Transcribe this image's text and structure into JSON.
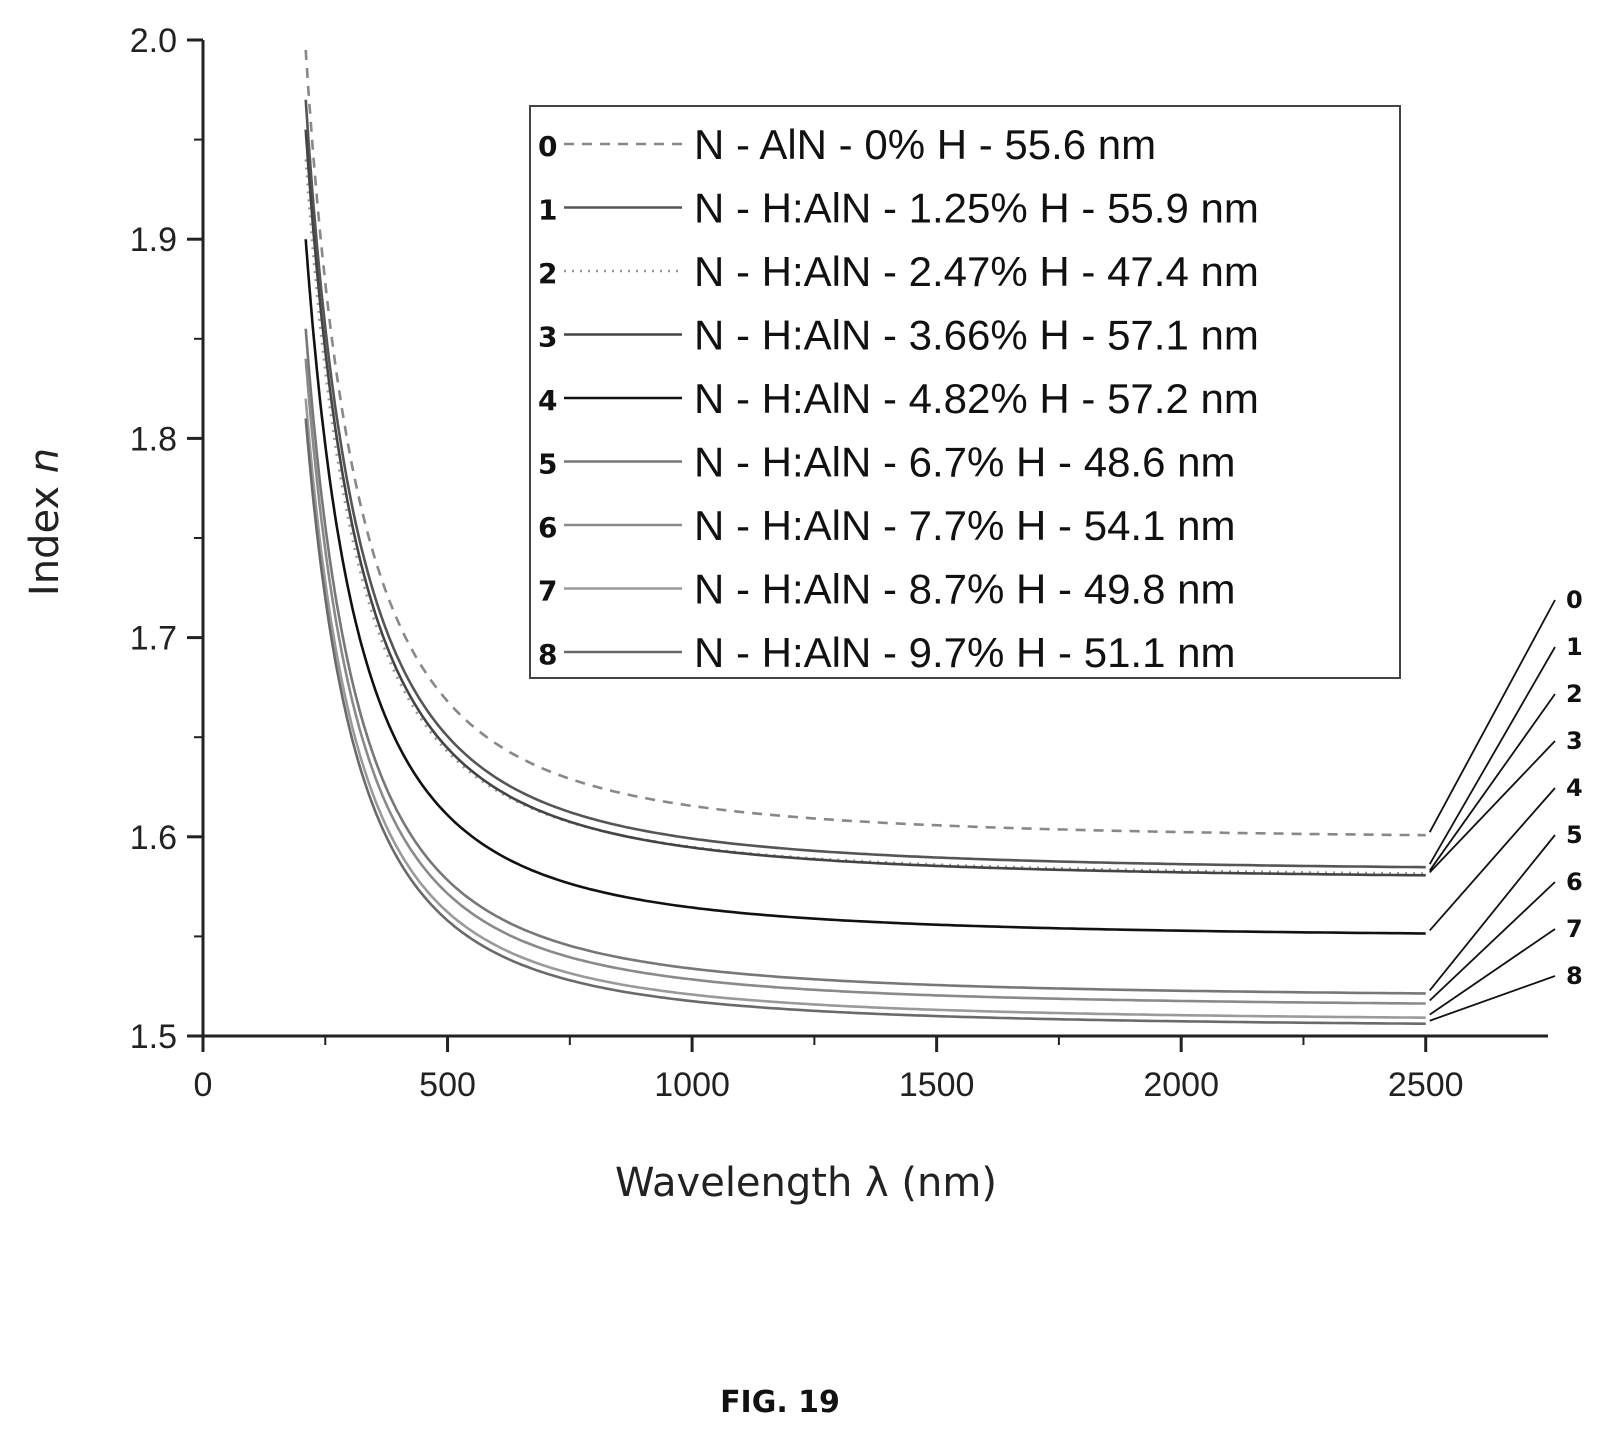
{
  "chart_data": {
    "type": "line",
    "xlabel": "Wavelength λ (nm)",
    "ylabel_main": "Index ",
    "ylabel_var": "n",
    "xlim": [
      0,
      2750
    ],
    "ylim": [
      1.5,
      2.0
    ],
    "x_ticks": [
      0,
      500,
      1000,
      1500,
      2000,
      2500
    ],
    "x_tick_labels": [
      "0",
      "500",
      "1000",
      "1500",
      "2000",
      "2500"
    ],
    "y_ticks": [
      1.5,
      1.6,
      1.7,
      1.8,
      1.9,
      2.0
    ],
    "y_tick_labels": [
      "1.5",
      "1.6",
      "1.7",
      "1.8",
      "1.9",
      "2.0"
    ],
    "grid": false,
    "legend_position": "top-right",
    "x_range": [
      210,
      2500
    ],
    "series": [
      {
        "id": "0",
        "name": "N - AlN - 0% H - 55.6 nm",
        "n_inf": 1.598,
        "n_start": 1.995,
        "color": "#888888",
        "dash": "10,8"
      },
      {
        "id": "1",
        "name": "N - H:AlN - 1.25% H - 55.9 nm",
        "n_inf": 1.582,
        "n_start": 1.97,
        "color": "#555555",
        "dash": ""
      },
      {
        "id": "2",
        "name": "N - H:AlN - 2.47% H - 47.4 nm",
        "n_inf": 1.579,
        "n_start": 1.94,
        "color": "#999999",
        "dash": "2,6"
      },
      {
        "id": "3",
        "name": "N - H:AlN - 3.66% H - 57.1 nm",
        "n_inf": 1.578,
        "n_start": 1.955,
        "color": "#444444",
        "dash": ""
      },
      {
        "id": "4",
        "name": "N - H:AlN - 4.82% H - 57.2 nm",
        "n_inf": 1.549,
        "n_start": 1.9,
        "color": "#111111",
        "dash": ""
      },
      {
        "id": "5",
        "name": "N - H:AlN - 6.7% H - 48.6 nm",
        "n_inf": 1.519,
        "n_start": 1.855,
        "color": "#777777",
        "dash": ""
      },
      {
        "id": "6",
        "name": "N - H:AlN - 7.7% H - 54.1 nm",
        "n_inf": 1.514,
        "n_start": 1.84,
        "color": "#8a8a8a",
        "dash": ""
      },
      {
        "id": "7",
        "name": "N - H:AlN - 8.7% H - 49.8 nm",
        "n_inf": 1.507,
        "n_start": 1.82,
        "color": "#9a9a9a",
        "dash": ""
      },
      {
        "id": "8",
        "name": "N - H:AlN - 9.7% H - 51.1 nm",
        "n_inf": 1.504,
        "n_start": 1.81,
        "color": "#6a6a6a",
        "dash": ""
      }
    ]
  },
  "figure_label": "FIG. 19"
}
